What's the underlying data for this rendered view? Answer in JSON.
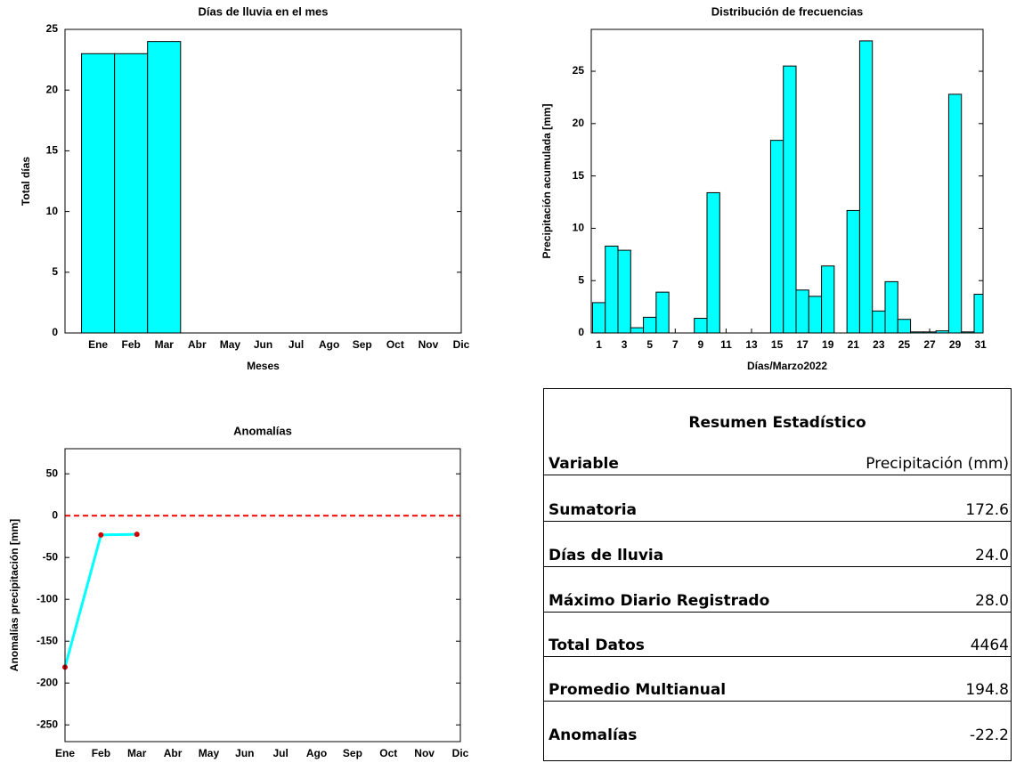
{
  "chart_data": [
    {
      "type": "bar",
      "title": "Días de lluvia en el mes",
      "xlabel": "Meses",
      "ylabel": "Total días",
      "categories": [
        "Ene",
        "Feb",
        "Mar",
        "Abr",
        "May",
        "Jun",
        "Jul",
        "Ago",
        "Sep",
        "Oct",
        "Nov",
        "Dic"
      ],
      "values": [
        23,
        23,
        24,
        null,
        null,
        null,
        null,
        null,
        null,
        null,
        null,
        null
      ],
      "color": "#00ffff",
      "ylim": [
        0,
        25
      ],
      "yticks": [
        0,
        5,
        10,
        15,
        20,
        25
      ]
    },
    {
      "type": "bar",
      "title": "Distribución de frecuencias",
      "xlabel": "Días/Marzo2022",
      "ylabel": "Precipitación acumulada [mm]",
      "x": [
        1,
        2,
        3,
        4,
        5,
        6,
        7,
        8,
        9,
        10,
        11,
        12,
        13,
        14,
        15,
        16,
        17,
        18,
        19,
        20,
        21,
        22,
        23,
        24,
        25,
        26,
        27,
        28,
        29,
        30,
        31
      ],
      "values": [
        2.9,
        8.3,
        7.9,
        0.5,
        1.5,
        3.9,
        0,
        0,
        1.4,
        13.4,
        0,
        0,
        0,
        0,
        18.4,
        25.5,
        4.1,
        3.5,
        6.4,
        0,
        11.7,
        27.9,
        2.1,
        4.9,
        1.3,
        0.1,
        0.1,
        0.2,
        22.8,
        0.1,
        3.7
      ],
      "color": "#00ffff",
      "xlim": [
        0.4,
        31.2
      ],
      "xticks": [
        1,
        3,
        5,
        7,
        9,
        11,
        13,
        15,
        17,
        19,
        21,
        23,
        25,
        27,
        29,
        31
      ],
      "ylim": [
        0,
        29
      ],
      "yticks": [
        0,
        5,
        10,
        15,
        20,
        25
      ]
    },
    {
      "type": "line",
      "title": "Anomalías",
      "ylabel": "Anomalías precipitación [mm]",
      "categories": [
        "Ene",
        "Feb",
        "Mar",
        "Abr",
        "May",
        "Jun",
        "Jul",
        "Ago",
        "Sep",
        "Oct",
        "Nov",
        "Dic"
      ],
      "values": [
        -181,
        -23,
        -22.2,
        null,
        null,
        null,
        null,
        null,
        null,
        null,
        null,
        null
      ],
      "color": "#00ffff",
      "marker_color": "#cc0000",
      "reference_line": {
        "value": 0,
        "color": "#ff0000"
      },
      "ylim": [
        -270,
        80
      ],
      "yticks": [
        -250,
        -200,
        -150,
        -100,
        -50,
        0,
        50
      ]
    }
  ],
  "table": {
    "title": "Resumen Estadístico",
    "rows": [
      [
        "Variable",
        "Precipitación (mm)"
      ],
      [
        "Sumatoria",
        "172.6"
      ],
      [
        "Días de lluvia",
        "24.0"
      ],
      [
        "Máximo Diario Registrado",
        "28.0"
      ],
      [
        "Total Datos",
        "4464"
      ],
      [
        "Promedio Multianual",
        "194.8"
      ],
      [
        "Anomalías",
        "-22.2"
      ]
    ]
  }
}
